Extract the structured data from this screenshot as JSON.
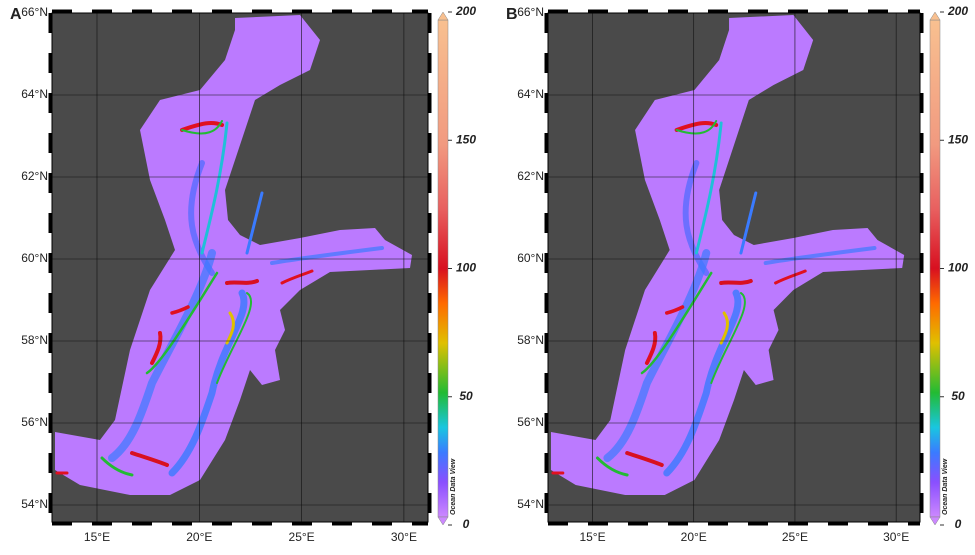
{
  "panels": [
    {
      "label": "A",
      "lat_ticks": [
        "54°N",
        "56°N",
        "58°N",
        "60°N",
        "62°N",
        "64°N",
        "66°N"
      ],
      "lon_ticks": [
        "15°E",
        "20°E",
        "25°E",
        "30°E"
      ],
      "colorbar": {
        "ticks": [
          0,
          50,
          100,
          150,
          200
        ],
        "credit": "Ocean Data View"
      }
    },
    {
      "label": "B",
      "lat_ticks": [
        "54°N",
        "56°N",
        "58°N",
        "60°N",
        "62°N",
        "64°N",
        "66°N"
      ],
      "lon_ticks": [
        "15°E",
        "20°E",
        "25°E",
        "30°E"
      ],
      "colorbar": {
        "ticks": [
          0,
          50,
          100,
          150,
          200
        ],
        "credit": "Ocean Data View"
      }
    }
  ]
}
